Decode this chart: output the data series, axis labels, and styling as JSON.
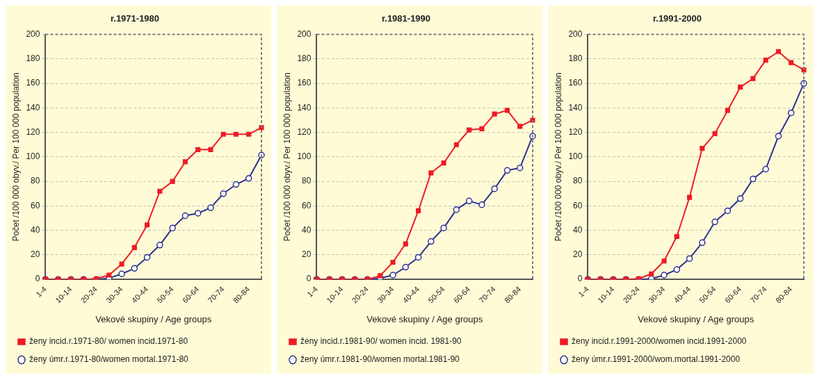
{
  "chart_data": [
    {
      "type": "line",
      "title": "r.1971-1980",
      "xlabel": "Vekové skupiny / Age groups",
      "ylabel": "Počet /100 000 obyv./ Per 100 000 population",
      "categories": [
        "1-4",
        null,
        "10-14",
        null,
        "20-24",
        null,
        "30-34",
        null,
        "40-44",
        null,
        "50-54",
        null,
        "60-64",
        null,
        "70-74",
        null,
        "80-84",
        null
      ],
      "ylim": [
        0,
        200
      ],
      "yticks": [
        0,
        20,
        40,
        60,
        80,
        100,
        120,
        140,
        160,
        180,
        200
      ],
      "grid": "y",
      "legend": "bottom",
      "series": [
        {
          "name": "ženy incid.r.1971-80/ women incid.1971-80",
          "color": "#ee1c25",
          "marker": "square",
          "values": [
            0,
            0,
            0,
            0,
            0.5,
            3.5,
            12.5,
            26,
            44.5,
            72,
            80,
            96,
            106,
            106,
            118.5,
            118.5,
            118.5,
            124
          ]
        },
        {
          "name": "ženy úmr.r.1971-80/women mortal.1971-80",
          "color": "#2e3192",
          "marker": "circle",
          "values": [
            0,
            0,
            0,
            0,
            0,
            1,
            4.5,
            9,
            18,
            28,
            42,
            52,
            54,
            58.5,
            70,
            77.5,
            82.5,
            101.5
          ]
        }
      ]
    },
    {
      "type": "line",
      "title": "r.1981-1990",
      "xlabel": "Vekové skupiny / Age groups",
      "ylabel": "Počet /100 000 obyv./ Per 100 000 population",
      "categories": [
        "1-4",
        null,
        "10-14",
        null,
        "20-24",
        null,
        "30-34",
        null,
        "40-44",
        null,
        "50-54",
        null,
        "60-64",
        null,
        "70-74",
        null,
        "80-84",
        null
      ],
      "ylim": [
        0,
        200
      ],
      "yticks": [
        0,
        20,
        40,
        60,
        80,
        100,
        120,
        140,
        160,
        180,
        200
      ],
      "grid": "y",
      "legend": "bottom",
      "series": [
        {
          "name": "ženy incid.r.1981-90/ women incid. 1981-90",
          "color": "#ee1c25",
          "marker": "square",
          "values": [
            0,
            0,
            0,
            0,
            0,
            3,
            14,
            29,
            56,
            87,
            95,
            110,
            122,
            123,
            135,
            138,
            125,
            130
          ]
        },
        {
          "name": "ženy úmr.r.1981-90/women mortal.1981-90",
          "color": "#2e3192",
          "marker": "circle",
          "values": [
            0,
            0,
            0,
            0,
            0,
            1,
            3.5,
            10,
            18,
            31,
            42,
            57,
            64,
            61,
            74,
            89,
            91,
            117
          ]
        }
      ]
    },
    {
      "type": "line",
      "title": "r.1991-2000",
      "xlabel": "Vekové skupiny / Age groups",
      "ylabel": "Počet /100 000 obyv./ Per 100 000 population",
      "categories": [
        "1-4",
        null,
        "10-14",
        null,
        "20-24",
        null,
        "30-34",
        null,
        "40-44",
        null,
        "50-54",
        null,
        "60-64",
        null,
        "70-74",
        null,
        "80-84",
        null
      ],
      "ylim": [
        0,
        200
      ],
      "yticks": [
        0,
        20,
        40,
        60,
        80,
        100,
        120,
        140,
        160,
        180,
        200
      ],
      "grid": "y",
      "legend": "bottom",
      "series": [
        {
          "name": "ženy incid.r.1991-2000/women incid.1991-2000",
          "color": "#ee1c25",
          "marker": "square",
          "values": [
            0,
            0,
            0,
            0,
            0.5,
            4.5,
            15,
            35,
            67,
            107,
            119,
            138,
            157,
            164,
            179,
            186,
            177,
            171
          ]
        },
        {
          "name": "ženy úmr.r.1991-2000/wom.mortal.1991-2000",
          "color": "#2e3192",
          "marker": "circle",
          "values": [
            0,
            0,
            0,
            0,
            0,
            0.5,
            3.5,
            8,
            17,
            30,
            47,
            56,
            66,
            82,
            90,
            117,
            136,
            160
          ]
        }
      ]
    }
  ]
}
